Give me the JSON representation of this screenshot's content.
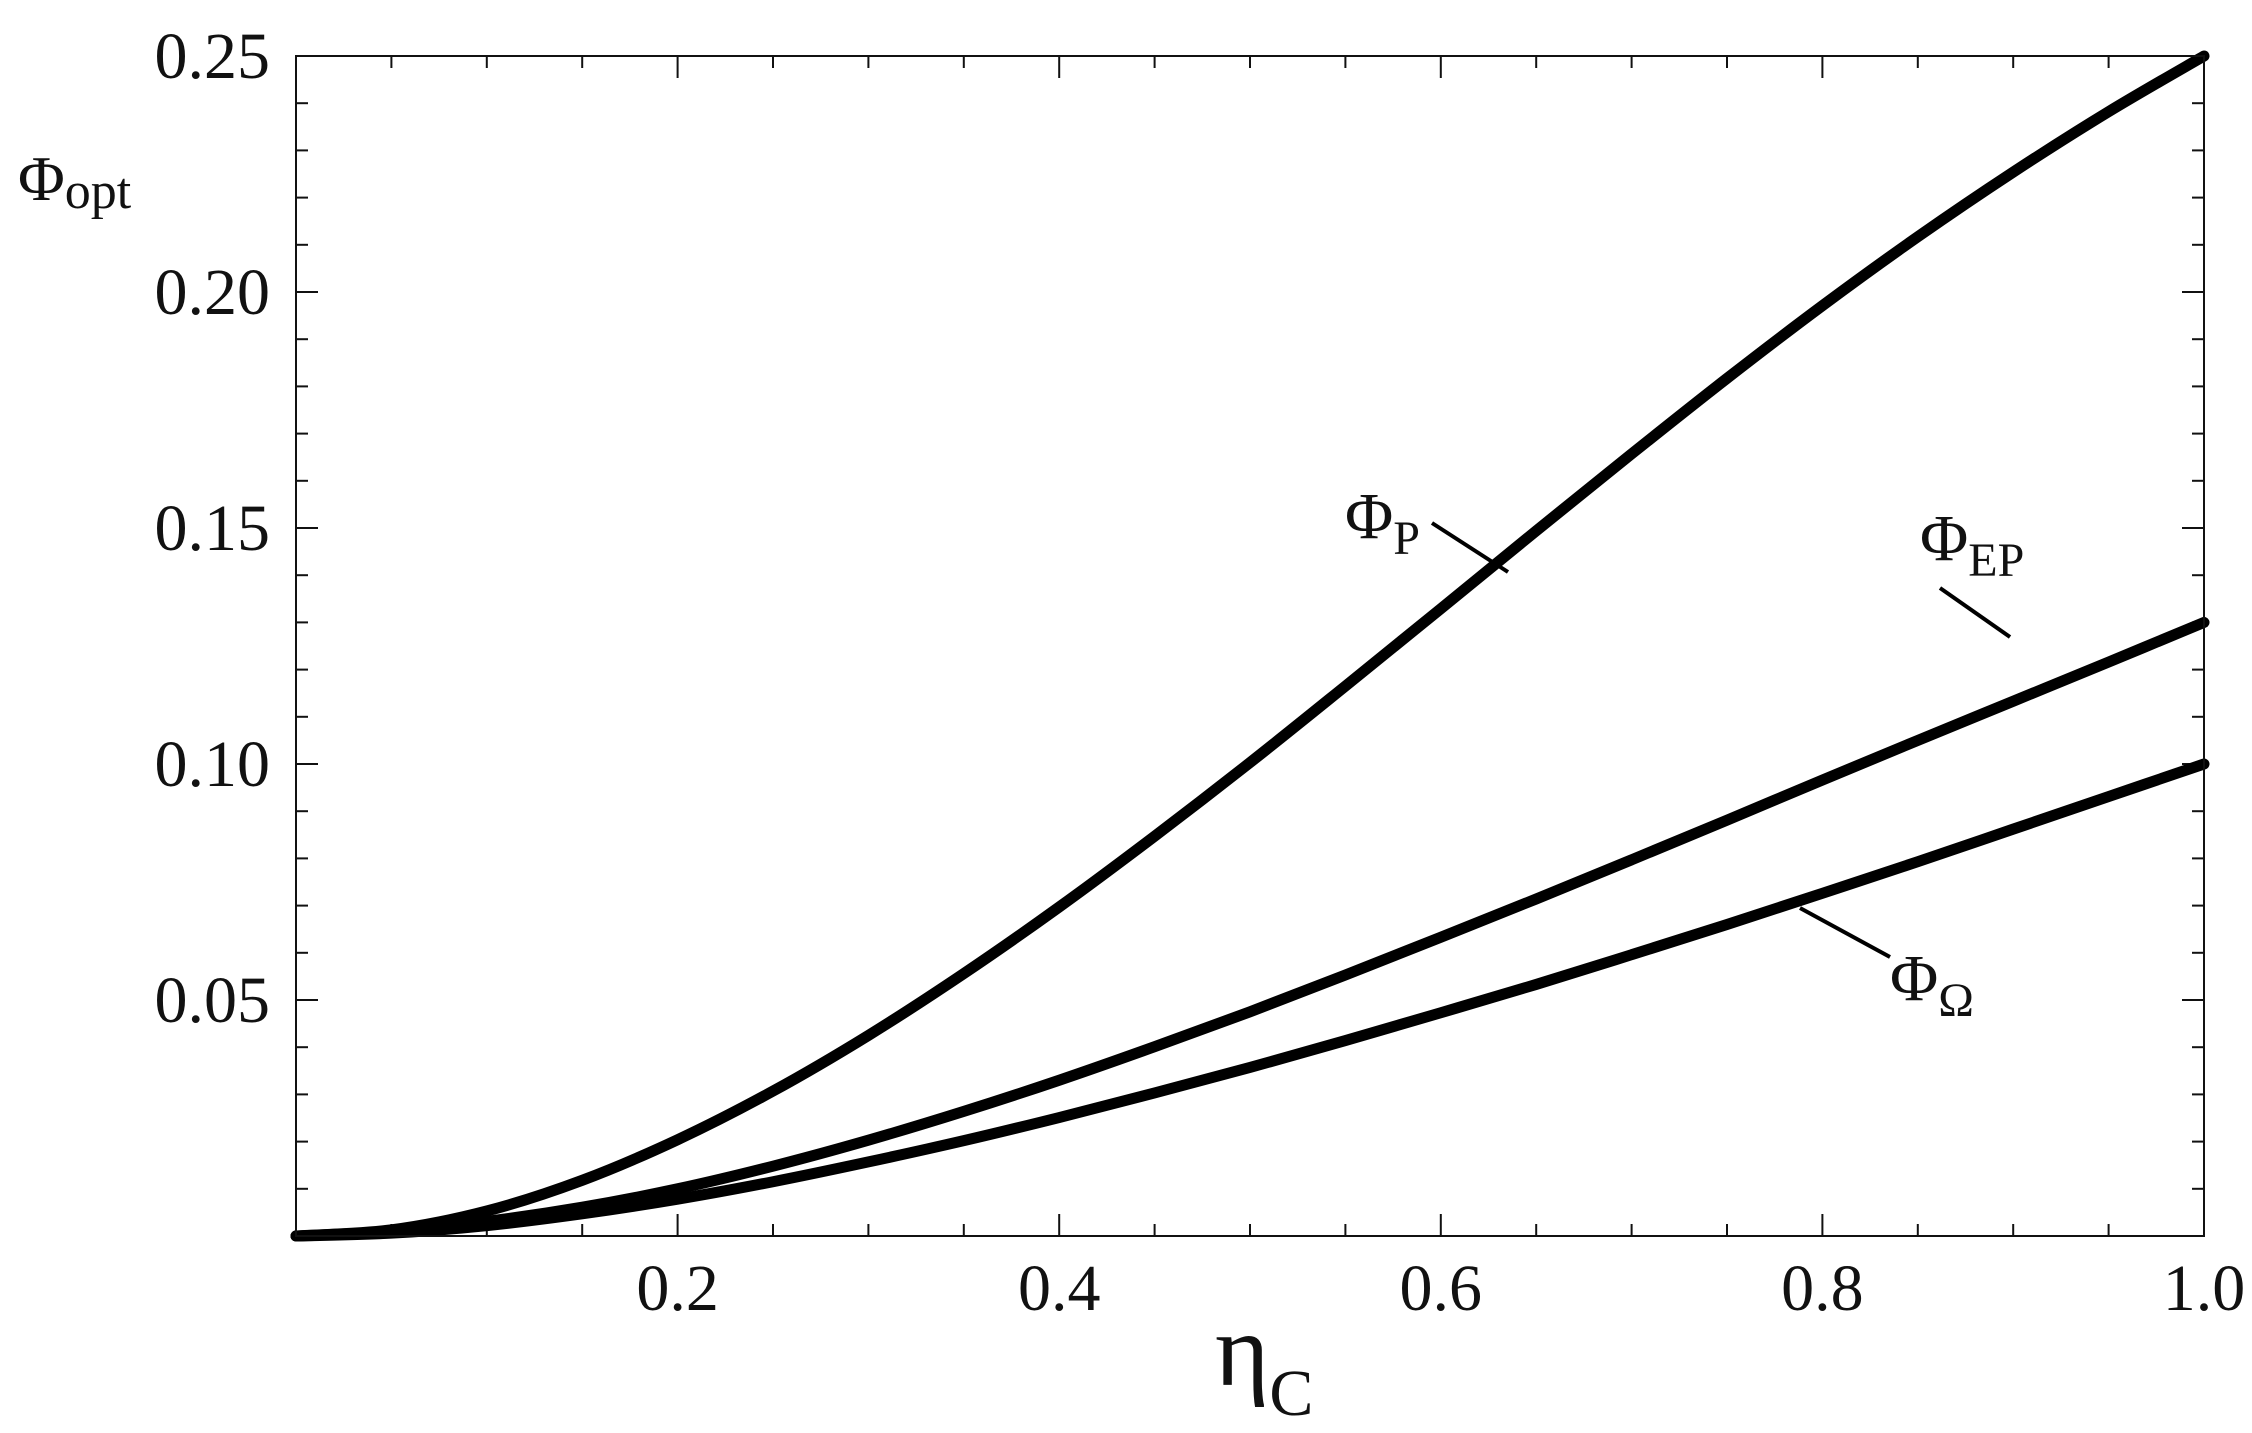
{
  "chart_data": {
    "type": "line",
    "xlabel": {
      "main": "η",
      "sub": "C"
    },
    "ylabel": {
      "main": "Φ",
      "sub": "opt"
    },
    "xlim": [
      0,
      1.0
    ],
    "ylim": [
      0,
      0.25
    ],
    "x_ticks": [
      "0.2",
      "0.4",
      "0.6",
      "0.8",
      "1.0"
    ],
    "x_tick_values": [
      0.2,
      0.4,
      0.6,
      0.8,
      1.0
    ],
    "y_ticks": [
      "0.05",
      "0.10",
      "0.15",
      "0.20",
      "0.25"
    ],
    "y_tick_values": [
      0.05,
      0.1,
      0.15,
      0.2,
      0.25
    ],
    "x_minor_step": 0.05,
    "y_minor_step": 0.01,
    "grid": false,
    "series": [
      {
        "name": "Φ_P",
        "label_main": "Φ",
        "label_sub": "P",
        "x": [
          0,
          0.05,
          0.1,
          0.15,
          0.2,
          0.25,
          0.3,
          0.35,
          0.4,
          0.45,
          0.5,
          0.55,
          0.6,
          0.65,
          0.7,
          0.75,
          0.8,
          0.85,
          0.9,
          0.95,
          1.0
        ],
        "y": [
          0.0,
          0.0013,
          0.0053,
          0.0118,
          0.0204,
          0.0307,
          0.0425,
          0.0556,
          0.0697,
          0.0847,
          0.1003,
          0.1165,
          0.1329,
          0.1494,
          0.1657,
          0.1817,
          0.1971,
          0.2117,
          0.2254,
          0.2382,
          0.25
        ]
      },
      {
        "name": "Φ_EP",
        "label_main": "Φ",
        "label_sub": "EP",
        "x": [
          0,
          0.05,
          0.1,
          0.15,
          0.2,
          0.25,
          0.3,
          0.35,
          0.4,
          0.45,
          0.5,
          0.55,
          0.6,
          0.65,
          0.7,
          0.75,
          0.8,
          0.85,
          0.9,
          0.95,
          1.0
        ],
        "y": [
          0.0,
          0.001,
          0.0031,
          0.0061,
          0.01,
          0.0148,
          0.0203,
          0.0264,
          0.033,
          0.0401,
          0.0475,
          0.0553,
          0.0633,
          0.0714,
          0.0797,
          0.0881,
          0.0966,
          0.105,
          0.1133,
          0.1216,
          0.13
        ]
      },
      {
        "name": "Φ_Ω",
        "label_main": "Φ",
        "label_sub": "Ω",
        "x": [
          0,
          0.05,
          0.1,
          0.15,
          0.2,
          0.25,
          0.3,
          0.35,
          0.4,
          0.45,
          0.5,
          0.55,
          0.6,
          0.65,
          0.7,
          0.75,
          0.8,
          0.85,
          0.9,
          0.95,
          1.0
        ],
        "y": [
          0.0,
          0.0006,
          0.0022,
          0.0047,
          0.0078,
          0.0115,
          0.0157,
          0.0202,
          0.0251,
          0.0303,
          0.0357,
          0.0414,
          0.0473,
          0.0533,
          0.0596,
          0.066,
          0.0726,
          0.0793,
          0.0862,
          0.0931,
          0.1
        ]
      }
    ]
  }
}
